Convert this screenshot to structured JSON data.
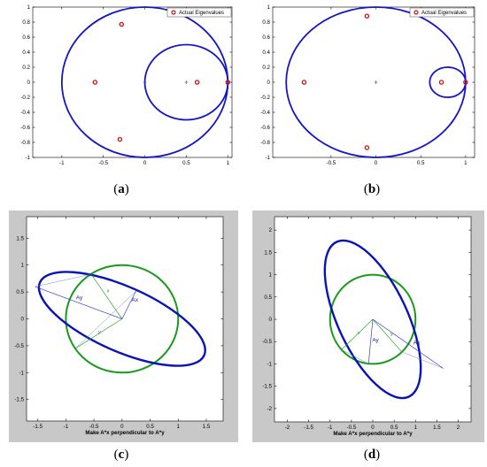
{
  "captions": {
    "a": {
      "open": "(",
      "letter": "a",
      "close": ")"
    },
    "b": {
      "open": "(",
      "letter": "b",
      "close": ")"
    },
    "c": {
      "open": "(",
      "letter": "c",
      "close": ")"
    },
    "d": {
      "open": "(",
      "letter": "d",
      "close": ")"
    }
  },
  "colors": {
    "circle": "#1515c8",
    "ellipse": "#0a14b4",
    "unit_circle": "#1a9a1a",
    "eig_marker": "#d01010",
    "vector_blue": "#3a3ad0",
    "vector_green": "#30a030",
    "frame_gray": "#c8c8c8"
  },
  "chart_data": [
    {
      "id": "a",
      "type": "scatter",
      "xlim": [
        -1.35,
        1.05
      ],
      "ylim": [
        -1,
        1
      ],
      "xticks": [
        -1,
        -0.5,
        0,
        0.5,
        1
      ],
      "yticks": [
        -1,
        -0.8,
        -0.6,
        -0.4,
        -0.2,
        0,
        0.2,
        0.4,
        0.6,
        0.8,
        1
      ],
      "xtick_labels": [
        "-1",
        "-0.5",
        "0",
        "0.5",
        "1"
      ],
      "ytick_labels": [
        "-1",
        "-0.8",
        "-0.6",
        "-0.4",
        "-0.2",
        "0",
        "0.2",
        "0.4",
        "0.6",
        "0.8",
        "1"
      ],
      "legend": {
        "label": "Actual Eigenvalues",
        "placement": "top-right"
      },
      "circles": [
        {
          "center": [
            0,
            0
          ],
          "radius": 1
        },
        {
          "center": [
            0.5,
            0
          ],
          "radius": 0.5
        }
      ],
      "plus_markers": [
        [
          0,
          0
        ],
        [
          0.5,
          0
        ]
      ],
      "series": [
        {
          "name": "Actual Eigenvalues",
          "x": [
            -0.28,
            -0.6,
            -0.3,
            0.63,
            1.0
          ],
          "y": [
            0.77,
            0,
            -0.76,
            0,
            0
          ]
        }
      ]
    },
    {
      "id": "b",
      "type": "scatter",
      "xlim": [
        -1.15,
        1.1
      ],
      "ylim": [
        -1,
        1
      ],
      "xticks": [
        -0.5,
        0,
        0.5,
        1
      ],
      "yticks": [
        -1,
        -0.8,
        -0.6,
        -0.4,
        -0.2,
        0,
        0.2,
        0.4,
        0.6,
        0.8,
        1
      ],
      "xtick_labels": [
        "-0.5",
        "0",
        "0.5",
        "1"
      ],
      "ytick_labels": [
        "-1",
        "-0.8",
        "-0.6",
        "-0.4",
        "-0.2",
        "0",
        "0.2",
        "0.4",
        "0.6",
        "0.8",
        "1"
      ],
      "legend": {
        "label": "Actual Eigenvalues",
        "placement": "top-right"
      },
      "circles": [
        {
          "center": [
            0,
            0
          ],
          "radius": 1
        },
        {
          "center": [
            0.8,
            0
          ],
          "radius": 0.2
        }
      ],
      "plus_markers": [
        [
          0,
          0
        ]
      ],
      "series": [
        {
          "name": "Actual Eigenvalues",
          "x": [
            -0.8,
            -0.1,
            -0.1,
            0.73,
            1.0
          ],
          "y": [
            0,
            0.88,
            -0.87,
            0,
            0
          ]
        }
      ]
    },
    {
      "id": "c",
      "type": "line",
      "xlabel": "Make A*x perpendicular to A*y",
      "xlim": [
        -1.7,
        1.8
      ],
      "ylim": [
        -1.9,
        1.9
      ],
      "xticks": [
        -1.5,
        -1,
        -0.5,
        0,
        0.5,
        1,
        1.5
      ],
      "yticks": [
        -1.5,
        -1,
        -0.5,
        0,
        0.5,
        1,
        1.5
      ],
      "xtick_labels": [
        "-1.5",
        "-1",
        "-0.5",
        "0",
        "0.5",
        "1",
        "1.5"
      ],
      "ytick_labels": [
        "-1.5",
        "-1",
        "-0.5",
        "0",
        "0.5",
        "1",
        "1.5"
      ],
      "unit_circle": {
        "center": [
          0,
          0
        ],
        "radius": 1
      },
      "ellipse": {
        "center": [
          0,
          0
        ],
        "semi_major": 1.6,
        "semi_minor": 0.6,
        "angle_deg": -24
      },
      "vectors": [
        {
          "label": "x",
          "to": [
            -0.55,
            0.83
          ],
          "color": "green"
        },
        {
          "label": "y",
          "to": [
            -0.83,
            -0.55
          ],
          "color": "green"
        },
        {
          "label": "Ax",
          "to": [
            0.25,
            0.52
          ],
          "color": "blue"
        },
        {
          "label": "Ay",
          "to": [
            -1.55,
            0.6
          ],
          "color": "blue"
        }
      ],
      "connectors": [
        [
          [
            -0.55,
            0.83
          ],
          [
            -1.55,
            0.6
          ]
        ],
        [
          [
            -0.83,
            -0.55
          ],
          [
            0.25,
            0.52
          ]
        ]
      ]
    },
    {
      "id": "d",
      "type": "line",
      "xlabel": "Make A*x perpendicular to A*y",
      "xlim": [
        -2.3,
        2.3
      ],
      "ylim": [
        -2.3,
        2.3
      ],
      "xticks": [
        -2,
        -1.5,
        -1,
        -0.5,
        0,
        0.5,
        1,
        1.5,
        2
      ],
      "yticks": [
        -2,
        -1.5,
        -1,
        -0.5,
        0,
        0.5,
        1,
        1.5,
        2
      ],
      "xtick_labels": [
        "-2",
        "-1.5",
        "-1",
        "-0.5",
        "0",
        "0.5",
        "1",
        "1.5",
        "2"
      ],
      "ytick_labels": [
        "-2",
        "-1.5",
        "-1",
        "-0.5",
        "0",
        "0.5",
        "1",
        "1.5",
        "2"
      ],
      "unit_circle": {
        "center": [
          0,
          0
        ],
        "radius": 1
      },
      "ellipse": {
        "center": [
          0,
          0
        ],
        "semi_major": 2.0,
        "semi_minor": 0.78,
        "angle_deg": -65
      },
      "vectors": [
        {
          "label": "x",
          "to": [
            -0.73,
            -0.68
          ],
          "color": "green"
        },
        {
          "label": "y",
          "to": [
            0.68,
            -0.73
          ],
          "color": "green"
        },
        {
          "label": "Ay",
          "to": [
            -0.1,
            -1.0
          ],
          "color": "blue"
        },
        {
          "label": "Ax",
          "to": [
            1.65,
            -1.1
          ],
          "color": "blue"
        }
      ],
      "connectors": [
        [
          [
            -0.73,
            -0.68
          ],
          [
            -0.1,
            -1.0
          ]
        ],
        [
          [
            0.68,
            -0.73
          ],
          [
            1.65,
            -1.1
          ]
        ]
      ]
    }
  ]
}
